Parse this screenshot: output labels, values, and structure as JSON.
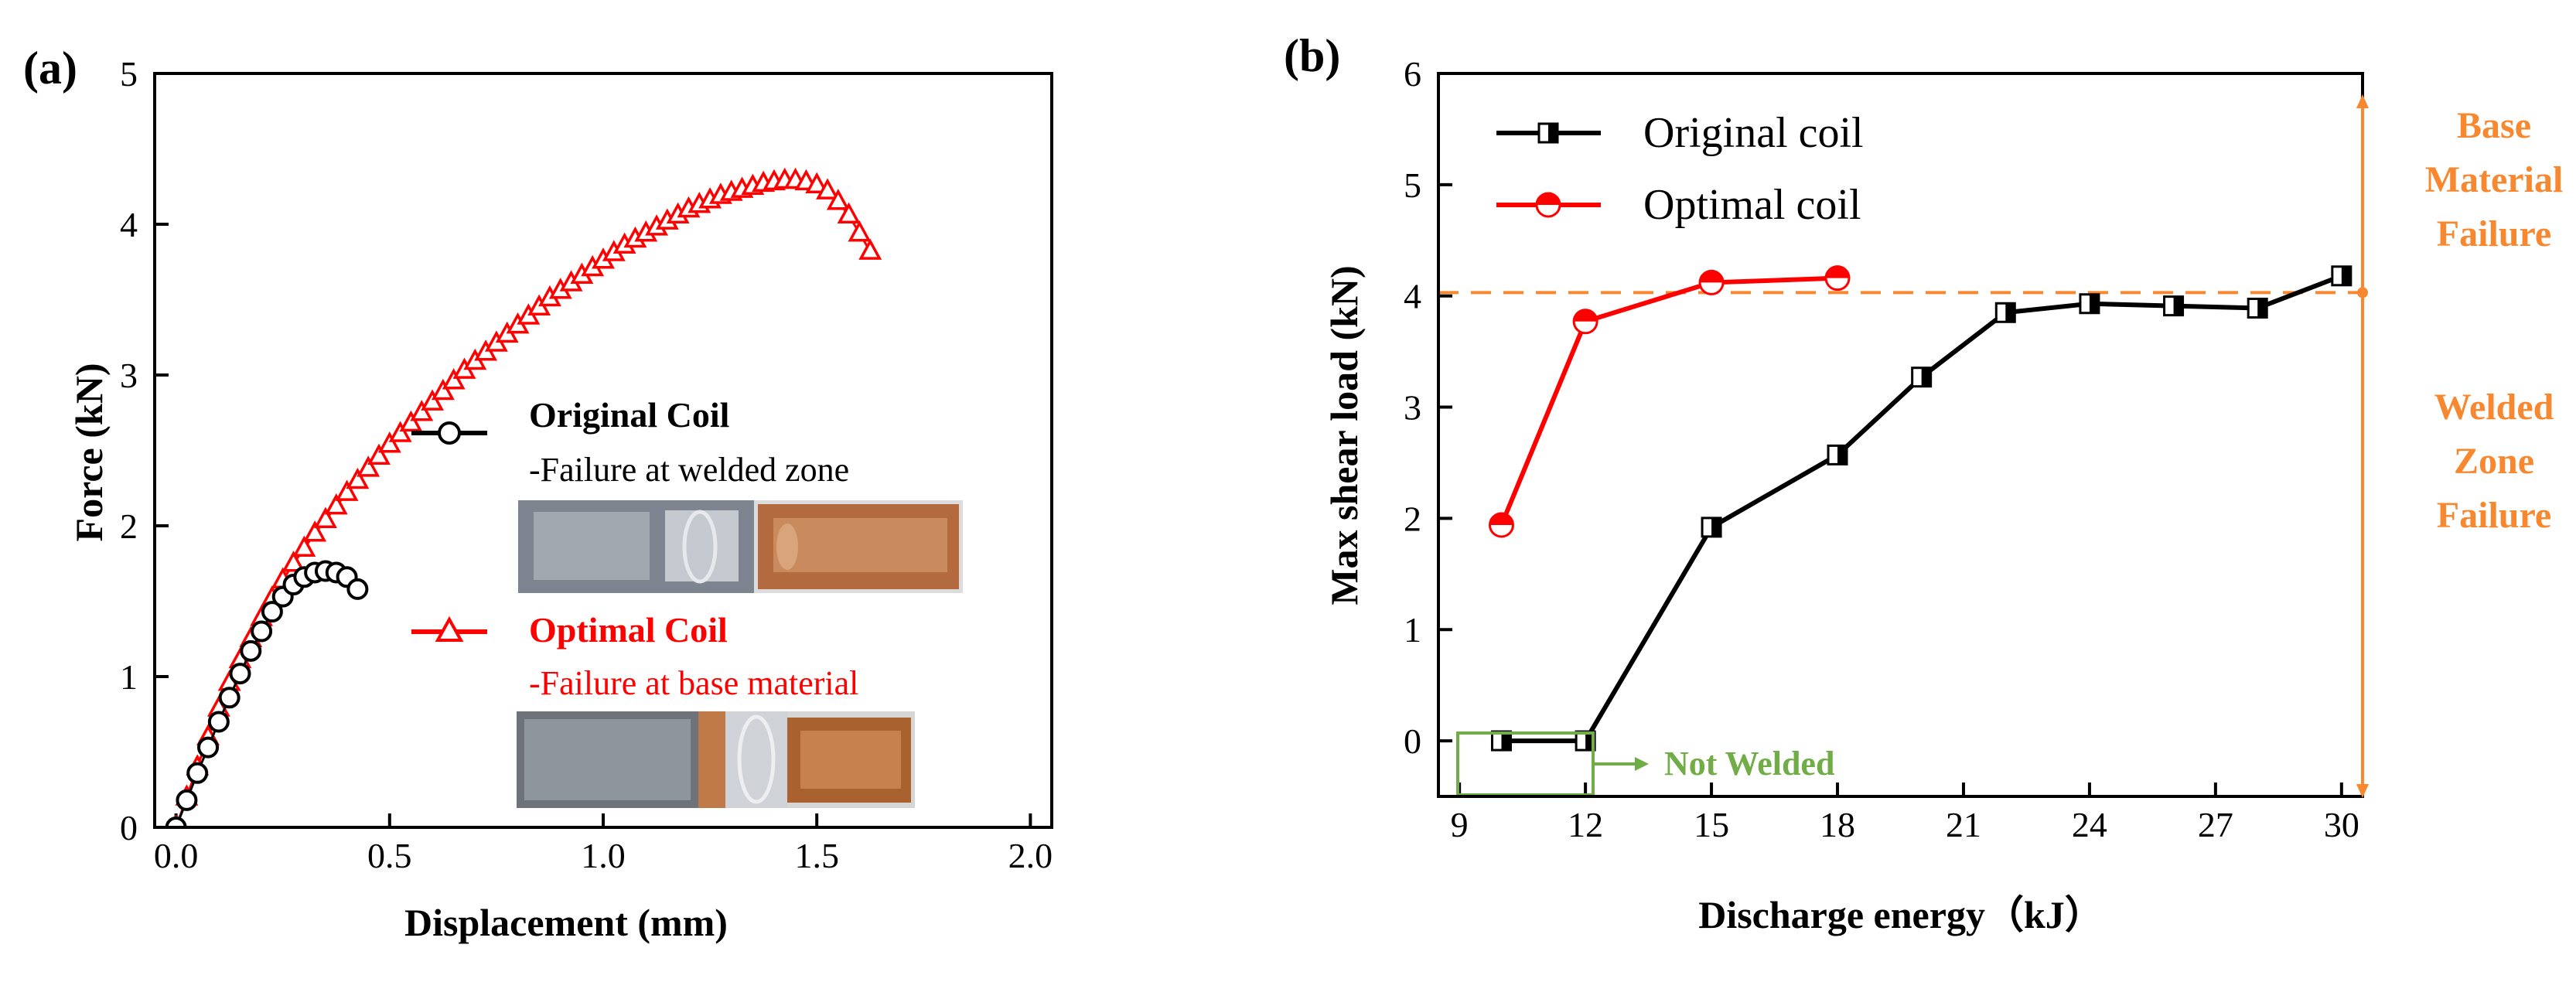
{
  "chart_data": [
    {
      "panel_label": "(a)",
      "type": "scatter",
      "xlabel": "Displacement (mm)",
      "ylabel": "Force (kN)",
      "xlim": [
        -0.05,
        2.05
      ],
      "ylim": [
        0,
        5
      ],
      "xticks": [
        0.0,
        0.5,
        1.0,
        1.5,
        2.0
      ],
      "xtick_labels": [
        "0.0",
        "0.5",
        "1.0",
        "1.5",
        "2.0"
      ],
      "yticks": [
        0,
        1,
        2,
        3,
        4,
        5
      ],
      "ytick_labels": [
        "0",
        "1",
        "2",
        "3",
        "4",
        "5"
      ],
      "series": [
        {
          "name": "Original Coil",
          "note": "-Failure at welded zone",
          "color": "#000000",
          "marker": "circle",
          "x": [
            0.0,
            0.025,
            0.05,
            0.075,
            0.1,
            0.125,
            0.15,
            0.175,
            0.2,
            0.225,
            0.25,
            0.275,
            0.3,
            0.325,
            0.35,
            0.375,
            0.4,
            0.425
          ],
          "y": [
            0.0,
            0.18,
            0.36,
            0.53,
            0.7,
            0.86,
            1.02,
            1.17,
            1.3,
            1.43,
            1.53,
            1.61,
            1.66,
            1.69,
            1.7,
            1.69,
            1.66,
            1.58
          ]
        },
        {
          "name": "Optimal Coil",
          "note": "-Failure at base material",
          "color": "#ff0000",
          "marker": "triangle",
          "x": [
            0.0,
            0.025,
            0.05,
            0.075,
            0.1,
            0.125,
            0.15,
            0.175,
            0.2,
            0.225,
            0.25,
            0.275,
            0.3,
            0.325,
            0.35,
            0.375,
            0.4,
            0.425,
            0.45,
            0.475,
            0.5,
            0.525,
            0.55,
            0.575,
            0.6,
            0.625,
            0.65,
            0.675,
            0.7,
            0.725,
            0.75,
            0.775,
            0.8,
            0.825,
            0.85,
            0.875,
            0.9,
            0.925,
            0.95,
            0.975,
            1.0,
            1.025,
            1.05,
            1.075,
            1.1,
            1.125,
            1.15,
            1.175,
            1.2,
            1.225,
            1.25,
            1.275,
            1.3,
            1.325,
            1.35,
            1.375,
            1.4,
            1.425,
            1.45,
            1.475,
            1.5,
            1.525,
            1.55,
            1.575,
            1.6,
            1.625
          ],
          "y": [
            0.0,
            0.2,
            0.4,
            0.6,
            0.79,
            0.96,
            1.11,
            1.25,
            1.39,
            1.52,
            1.64,
            1.75,
            1.85,
            1.95,
            2.04,
            2.13,
            2.22,
            2.3,
            2.38,
            2.46,
            2.54,
            2.61,
            2.68,
            2.75,
            2.82,
            2.89,
            2.96,
            3.03,
            3.09,
            3.15,
            3.21,
            3.27,
            3.33,
            3.39,
            3.45,
            3.51,
            3.56,
            3.61,
            3.66,
            3.71,
            3.76,
            3.81,
            3.86,
            3.9,
            3.94,
            3.98,
            4.02,
            4.06,
            4.1,
            4.13,
            4.16,
            4.19,
            4.21,
            4.23,
            4.25,
            4.27,
            4.28,
            4.29,
            4.29,
            4.28,
            4.26,
            4.22,
            4.15,
            4.06,
            3.94,
            3.82
          ]
        }
      ]
    },
    {
      "panel_label": "(b)",
      "type": "line",
      "xlabel": "Discharge energy（kJ）",
      "ylabel": "Max shear load (kN)",
      "xlim": [
        8.5,
        30.5
      ],
      "ylim": [
        -0.5,
        6
      ],
      "xticks": [
        9,
        12,
        15,
        18,
        21,
        24,
        27,
        30
      ],
      "xtick_labels": [
        "9",
        "12",
        "15",
        "18",
        "21",
        "24",
        "27",
        "30"
      ],
      "yticks": [
        0,
        1,
        2,
        3,
        4,
        5,
        6
      ],
      "ytick_labels": [
        "0",
        "1",
        "2",
        "3",
        "4",
        "5",
        "6"
      ],
      "series": [
        {
          "name": "Original coil",
          "color": "#000000",
          "marker": "half-filled square",
          "x": [
            10,
            12,
            15,
            18,
            20,
            22,
            24,
            26,
            28,
            30
          ],
          "y": [
            0,
            0,
            1.92,
            2.57,
            3.27,
            3.85,
            3.93,
            3.91,
            3.89,
            4.18
          ]
        },
        {
          "name": "Optimal coil",
          "color": "#ff0000",
          "marker": "half-filled circle",
          "x": [
            10,
            12,
            15,
            18
          ],
          "y": [
            1.94,
            3.77,
            4.12,
            4.16
          ]
        }
      ],
      "threshold_line": {
        "y": 4.03,
        "color": "#f7882f",
        "style": "dashed"
      },
      "region_labels": {
        "upper": [
          "Base",
          "Material",
          "Failure"
        ],
        "lower": [
          "Welded",
          "Zone",
          "Failure"
        ],
        "color": "#f7882f"
      },
      "annotation": {
        "text": "Not Welded",
        "color": "#70ad47"
      }
    }
  ]
}
